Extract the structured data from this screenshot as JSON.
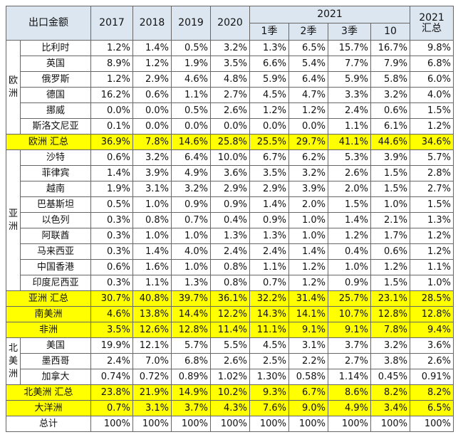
{
  "table": {
    "header": {
      "title": "出口金额",
      "years": [
        "2017",
        "2018",
        "2019",
        "2020"
      ],
      "group": "2021",
      "periods": [
        "1季",
        "2季",
        "3季",
        "10"
      ],
      "total": [
        "2021",
        "汇总"
      ]
    },
    "sections": [
      {
        "label": "欧洲",
        "rows": [
          {
            "name": "比利时",
            "values": [
              "1.2%",
              "1.4%",
              "0.5%",
              "3.2%",
              "1.3%",
              "6.5%",
              "15.7%",
              "16.7%",
              "9.8%"
            ]
          },
          {
            "name": "英国",
            "values": [
              "8.9%",
              "1.2%",
              "1.9%",
              "3.5%",
              "6.6%",
              "5.4%",
              "7.7%",
              "7.9%",
              "6.8%"
            ]
          },
          {
            "name": "俄罗斯",
            "values": [
              "1.2%",
              "2.9%",
              "4.6%",
              "4.8%",
              "5.9%",
              "6.4%",
              "5.9%",
              "5.8%",
              "6.0%"
            ]
          },
          {
            "name": "德国",
            "values": [
              "16.2%",
              "0.6%",
              "1.1%",
              "2.7%",
              "4.5%",
              "4.7%",
              "3.3%",
              "3.2%",
              "4.0%"
            ]
          },
          {
            "name": "挪威",
            "values": [
              "0.0%",
              "0.0%",
              "0.5%",
              "2.6%",
              "1.2%",
              "1.2%",
              "2.4%",
              "0.6%",
              "1.5%"
            ]
          },
          {
            "name": "斯洛文尼亚",
            "values": [
              "0.1%",
              "0.0%",
              "0.0%",
              "0.0%",
              "0.0%",
              "0.0%",
              "1.1%",
              "6.1%",
              "1.2%"
            ]
          }
        ],
        "summary": {
          "name": "欧洲 汇总",
          "values": [
            "36.9%",
            "7.8%",
            "14.6%",
            "25.8%",
            "25.5%",
            "29.7%",
            "41.1%",
            "44.6%",
            "34.6%"
          ]
        }
      },
      {
        "label": "亚洲",
        "rows": [
          {
            "name": "沙特",
            "values": [
              "0.6%",
              "3.2%",
              "6.4%",
              "10.0%",
              "6.7%",
              "6.2%",
              "5.3%",
              "3.9%",
              "5.7%"
            ]
          },
          {
            "name": "菲律宾",
            "values": [
              "1.4%",
              "3.9%",
              "4.9%",
              "3.6%",
              "3.5%",
              "3.2%",
              "2.6%",
              "1.5%",
              "2.8%"
            ]
          },
          {
            "name": "越南",
            "values": [
              "1.9%",
              "3.1%",
              "3.2%",
              "2.9%",
              "2.9%",
              "3.9%",
              "2.0%",
              "1.5%",
              "2.7%"
            ]
          },
          {
            "name": "巴基斯坦",
            "values": [
              "0.5%",
              "1.0%",
              "0.9%",
              "0.9%",
              "1.4%",
              "2.0%",
              "1.5%",
              "1.0%",
              "1.5%"
            ]
          },
          {
            "name": "以色列",
            "values": [
              "0.3%",
              "0.8%",
              "0.7%",
              "0.4%",
              "0.9%",
              "1.0%",
              "1.4%",
              "2.1%",
              "1.3%"
            ]
          },
          {
            "name": "阿联酋",
            "values": [
              "0.3%",
              "1.0%",
              "1.0%",
              "1.3%",
              "1.3%",
              "1.0%",
              "1.2%",
              "1.7%",
              "1.2%"
            ]
          },
          {
            "name": "马来西亚",
            "values": [
              "0.3%",
              "1.4%",
              "4.0%",
              "2.4%",
              "2.4%",
              "1.4%",
              "0.4%",
              "0.6%",
              "1.2%"
            ]
          },
          {
            "name": "中国香港",
            "values": [
              "0.6%",
              "1.6%",
              "1.0%",
              "0.8%",
              "1.1%",
              "1.2%",
              "1.0%",
              "1.2%",
              "1.1%"
            ]
          },
          {
            "name": "印度尼西亚",
            "values": [
              "0.3%",
              "1.1%",
              "1.3%",
              "0.8%",
              "0.7%",
              "1.2%",
              "0.9%",
              "1.5%",
              "1.0%"
            ]
          }
        ],
        "summary": {
          "name": "亚洲 汇总",
          "values": [
            "30.7%",
            "40.8%",
            "39.7%",
            "36.1%",
            "32.2%",
            "31.4%",
            "25.7%",
            "23.1%",
            "28.5%"
          ]
        }
      },
      {
        "summary": {
          "name": "南美洲",
          "values": [
            "4.6%",
            "13.8%",
            "14.4%",
            "12.2%",
            "14.3%",
            "14.1%",
            "10.7%",
            "12.8%",
            "12.8%"
          ]
        }
      },
      {
        "summary": {
          "name": "非洲",
          "values": [
            "3.5%",
            "12.6%",
            "12.8%",
            "11.4%",
            "11.1%",
            "9.1%",
            "9.1%",
            "7.8%",
            "9.4%"
          ]
        }
      },
      {
        "label": "北美洲",
        "rows": [
          {
            "name": "美国",
            "values": [
              "19.9%",
              "12.1%",
              "5.7%",
              "5.5%",
              "4.5%",
              "3.1%",
              "3.7%",
              "3.2%",
              "3.6%"
            ]
          },
          {
            "name": "墨西哥",
            "values": [
              "2.4%",
              "7.0%",
              "6.8%",
              "2.6%",
              "2.5%",
              "2.2%",
              "2.7%",
              "3.8%",
              "2.6%"
            ]
          },
          {
            "name": "加拿大",
            "values": [
              "0.74%",
              "0.72%",
              "0.89%",
              "1.02%",
              "1.30%",
              "0.58%",
              "1.14%",
              "0.45%",
              "0.91%"
            ]
          }
        ],
        "summary": {
          "name": "北美洲 汇总",
          "values": [
            "23.8%",
            "21.9%",
            "14.9%",
            "10.2%",
            "9.3%",
            "6.7%",
            "8.6%",
            "8.2%",
            "8.2%"
          ]
        }
      },
      {
        "summary": {
          "name": "大洋洲",
          "values": [
            "0.7%",
            "3.1%",
            "3.7%",
            "4.3%",
            "7.6%",
            "9.0%",
            "4.9%",
            "3.4%",
            "6.5%"
          ]
        }
      }
    ],
    "footer": {
      "name": "总计",
      "values": [
        "100%",
        "100%",
        "100%",
        "100%",
        "100%",
        "100%",
        "100%",
        "100%",
        "100%"
      ]
    }
  }
}
